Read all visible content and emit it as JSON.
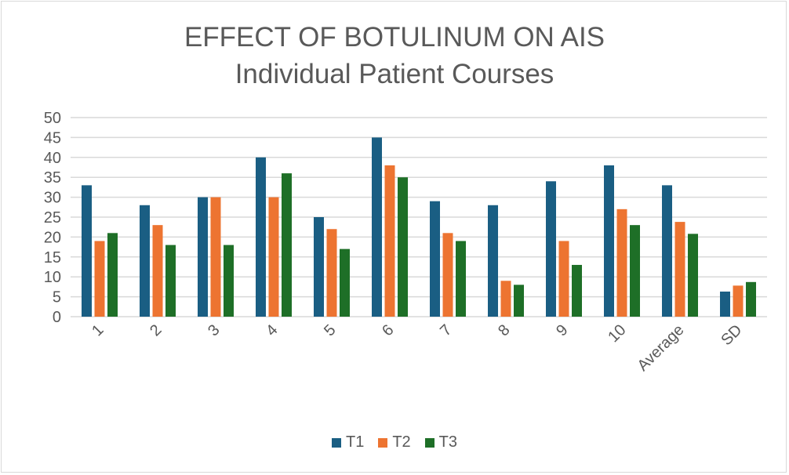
{
  "chart_data": {
    "type": "bar",
    "title": "EFFECT OF BOTULINUM ON AIS",
    "subtitle": "Individual Patient Courses",
    "categories": [
      "1",
      "2",
      "3",
      "4",
      "5",
      "6",
      "7",
      "8",
      "9",
      "10",
      "Average",
      "SD"
    ],
    "series": [
      {
        "name": "T1",
        "color": "#1a5e83",
        "values": [
          33,
          28,
          30,
          40,
          25,
          45,
          29,
          28,
          34,
          38,
          33,
          6.3
        ]
      },
      {
        "name": "T2",
        "color": "#ed7431",
        "values": [
          19,
          23,
          30,
          30,
          22,
          38,
          21,
          9,
          19,
          27,
          23.8,
          7.8
        ]
      },
      {
        "name": "T3",
        "color": "#1e6f27",
        "values": [
          21,
          18,
          18,
          36,
          17,
          35,
          19,
          8,
          13,
          23,
          20.8,
          8.7
        ]
      }
    ],
    "ylim": [
      0,
      50
    ],
    "yticks": [
      0,
      5,
      10,
      15,
      20,
      25,
      30,
      35,
      40,
      45,
      50
    ],
    "grid": true,
    "legend": "bottom"
  }
}
